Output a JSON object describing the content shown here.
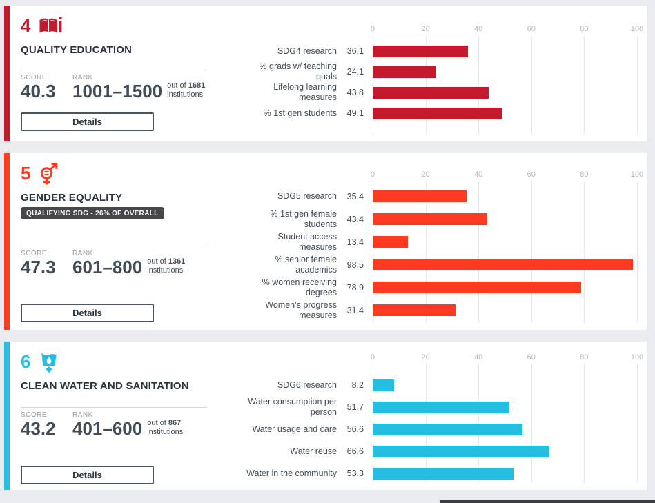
{
  "page": {
    "background_color": "#e9ebee",
    "scrollbar_thumb_color": "#3a3e42"
  },
  "axis_ticks": [
    "0",
    "20",
    "40",
    "60",
    "80",
    "100"
  ],
  "cards": [
    {
      "number": "4",
      "icon": "open-book-icon",
      "title": "QUALITY EDUCATION",
      "color": "#c5192d",
      "score_label": "SCORE",
      "score": "40.3",
      "rank_label": "RANK",
      "rank": "1001–1500",
      "out_of_prefix": "out of",
      "out_of_value": "1681",
      "out_of_suffix": "institutions",
      "details_label": "Details"
    },
    {
      "number": "5",
      "icon": "gender-equality-icon",
      "title": "GENDER EQUALITY",
      "color": "#ff3a21",
      "badge": "QUALIFYING SDG - 26% OF OVERALL",
      "score_label": "SCORE",
      "score": "47.3",
      "rank_label": "RANK",
      "rank": "601–800",
      "out_of_prefix": "out of",
      "out_of_value": "1361",
      "out_of_suffix": "institutions",
      "details_label": "Details"
    },
    {
      "number": "6",
      "icon": "water-glass-drop-icon",
      "title": "CLEAN WATER AND SANITATION",
      "color": "#26bde2",
      "score_label": "SCORE",
      "score": "43.2",
      "rank_label": "RANK",
      "rank": "401–600",
      "out_of_prefix": "out of",
      "out_of_value": "867",
      "out_of_suffix": "institutions",
      "details_label": "Details"
    }
  ],
  "chart_data": [
    {
      "type": "bar",
      "orientation": "horizontal",
      "title": "SDG 4 Quality Education metrics",
      "categories": [
        "SDG4 research",
        "% grads w/ teaching quals",
        "Lifelong learning measures",
        "% 1st gen students"
      ],
      "label_lines": [
        [
          "SDG4 research"
        ],
        [
          "% grads w/ teaching",
          "quals"
        ],
        [
          "Lifelong learning",
          "measures"
        ],
        [
          "% 1st gen students"
        ]
      ],
      "values": [
        36.1,
        24.1,
        43.8,
        49.1
      ],
      "xlim": [
        0,
        100
      ],
      "grid": true,
      "bar_color": "#c5192d",
      "tick_position": "top"
    },
    {
      "type": "bar",
      "orientation": "horizontal",
      "title": "SDG 5 Gender Equality metrics",
      "categories": [
        "SDG5 research",
        "% 1st gen female students",
        "Student access measures",
        "% senior female academics",
        "% women receiving degrees",
        "Women’s progress measures"
      ],
      "label_lines": [
        [
          "SDG5 research"
        ],
        [
          "% 1st gen female",
          "students"
        ],
        [
          "Student access",
          "measures"
        ],
        [
          "% senior female",
          "academics"
        ],
        [
          "% women receiving",
          "degrees"
        ],
        [
          "Women’s progress",
          "measures"
        ]
      ],
      "values": [
        35.4,
        43.4,
        13.4,
        98.5,
        78.9,
        31.4
      ],
      "xlim": [
        0,
        100
      ],
      "grid": true,
      "bar_color": "#ff3a21",
      "tick_position": "top"
    },
    {
      "type": "bar",
      "orientation": "horizontal",
      "title": "SDG 6 Clean Water and Sanitation metrics",
      "categories": [
        "SDG6 research",
        "Water consumption per person",
        "Water usage and care",
        "Water reuse",
        "Water in the community"
      ],
      "label_lines": [
        [
          "SDG6 research"
        ],
        [
          "Water consumption per",
          "person"
        ],
        [
          "Water usage and care"
        ],
        [
          "Water reuse"
        ],
        [
          "Water in the community"
        ]
      ],
      "values": [
        8.2,
        51.7,
        56.6,
        66.6,
        53.3
      ],
      "xlim": [
        0,
        100
      ],
      "grid": true,
      "bar_color": "#26bde2",
      "tick_position": "top"
    }
  ]
}
